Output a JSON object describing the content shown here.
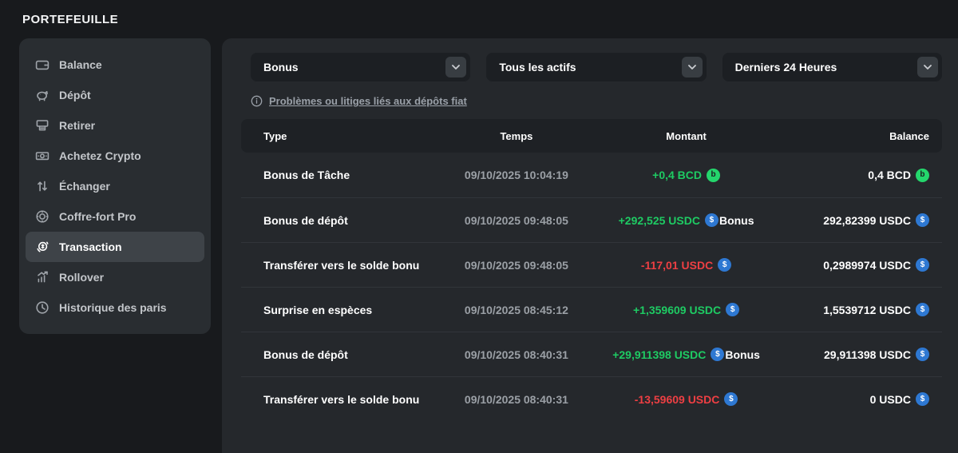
{
  "page": {
    "title": "PORTEFEUILLE"
  },
  "sidebar": {
    "items": [
      {
        "label": "Balance",
        "icon": "wallet-icon",
        "active": false
      },
      {
        "label": "Dépôt",
        "icon": "piggy-bank-icon",
        "active": false
      },
      {
        "label": "Retirer",
        "icon": "withdraw-icon",
        "active": false
      },
      {
        "label": "Achetez Crypto",
        "icon": "banknote-icon",
        "active": false
      },
      {
        "label": "Échanger",
        "icon": "swap-icon",
        "active": false
      },
      {
        "label": "Coffre-fort Pro",
        "icon": "vault-icon",
        "active": false
      },
      {
        "label": "Transaction",
        "icon": "coin-icon",
        "active": true
      },
      {
        "label": "Rollover",
        "icon": "chart-icon",
        "active": false
      },
      {
        "label": "Historique des paris",
        "icon": "clock-icon",
        "active": false
      }
    ]
  },
  "filters": {
    "type": {
      "value": "Bonus"
    },
    "asset": {
      "value": "Tous les actifs"
    },
    "period": {
      "value": "Derniers 24 Heures"
    }
  },
  "help_link": {
    "label": "Problèmes ou litiges liés aux dépôts fiat"
  },
  "table": {
    "headers": [
      "Type",
      "Temps",
      "Montant",
      "Balance"
    ],
    "rows": [
      {
        "type": "Bonus de Tâche",
        "time": "09/10/2025 10:04:19",
        "amount": "+0,4 BCD",
        "direction": "positive",
        "currency": "BCD",
        "tag": "",
        "balance": "0,4 BCD"
      },
      {
        "type": "Bonus de dépôt",
        "time": "09/10/2025 09:48:05",
        "amount": "+292,525 USDC",
        "direction": "positive",
        "currency": "USDC",
        "tag": "Bonus",
        "balance": "292,82399 USDC"
      },
      {
        "type": "Transférer vers le solde bonu",
        "time": "09/10/2025 09:48:05",
        "amount": "-117,01 USDC",
        "direction": "negative",
        "currency": "USDC",
        "tag": "",
        "balance": "0,2989974 USDC"
      },
      {
        "type": "Surprise en espèces",
        "time": "09/10/2025 08:45:12",
        "amount": "+1,359609 USDC",
        "direction": "positive",
        "currency": "USDC",
        "tag": "",
        "balance": "1,5539712 USDC"
      },
      {
        "type": "Bonus de dépôt",
        "time": "09/10/2025 08:40:31",
        "amount": "+29,911398 USDC",
        "direction": "positive",
        "currency": "USDC",
        "tag": "Bonus",
        "balance": "29,911398 USDC"
      },
      {
        "type": "Transférer vers le solde bonu",
        "time": "09/10/2025 08:40:31",
        "amount": "-13,59609 USDC",
        "direction": "negative",
        "currency": "USDC",
        "tag": "",
        "balance": "0 USDC"
      }
    ]
  },
  "colors": {
    "positive": "#1ecb63",
    "negative": "#ee3f43",
    "usdc_coin": "#2e78d2",
    "bcd_coin": "#24d66c"
  }
}
